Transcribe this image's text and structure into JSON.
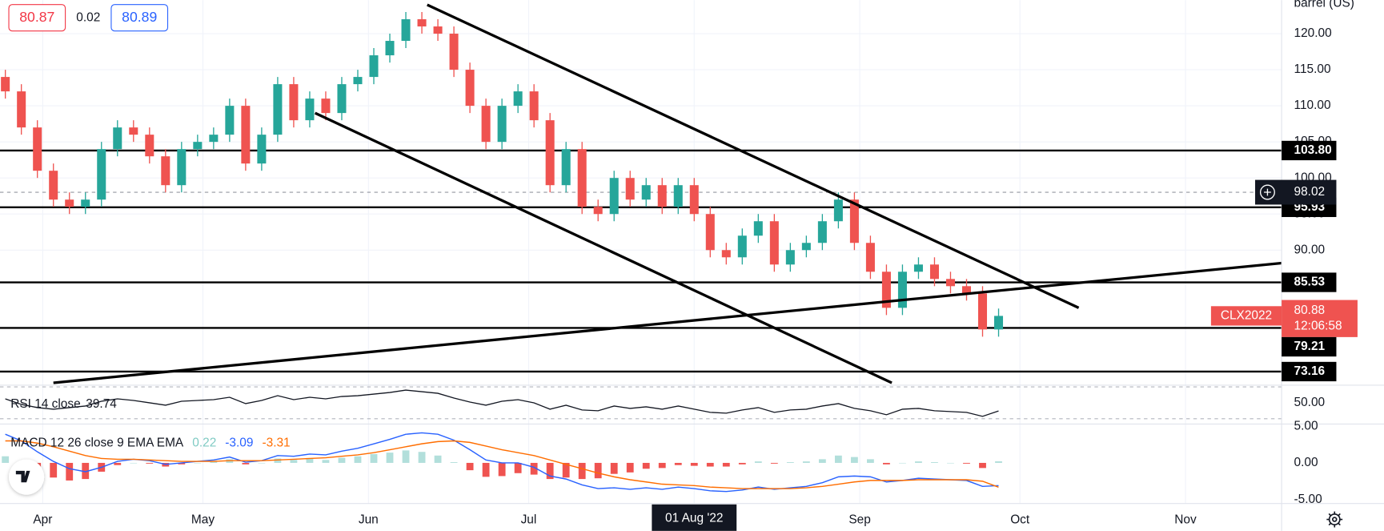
{
  "chart_data": {
    "type": "candlestick",
    "unit": "barrel (US)",
    "symbol": "CLX2022",
    "header": {
      "bid": 80.87,
      "spread": 0.02,
      "ask": 80.89
    },
    "x": [
      "2022-03-25",
      "2022-03-28",
      "2022-03-31",
      "2022-04-03",
      "2022-04-06",
      "2022-04-09",
      "2022-04-12",
      "2022-04-15",
      "2022-04-18",
      "2022-04-21",
      "2022-04-24",
      "2022-04-27",
      "2022-04-30",
      "2022-05-03",
      "2022-05-06",
      "2022-05-09",
      "2022-05-12",
      "2022-05-15",
      "2022-05-18",
      "2022-05-21",
      "2022-05-24",
      "2022-05-27",
      "2022-05-30",
      "2022-06-02",
      "2022-06-05",
      "2022-06-08",
      "2022-06-11",
      "2022-06-14",
      "2022-06-17",
      "2022-06-20",
      "2022-06-23",
      "2022-06-26",
      "2022-06-29",
      "2022-07-02",
      "2022-07-05",
      "2022-07-08",
      "2022-07-11",
      "2022-07-14",
      "2022-07-17",
      "2022-07-20",
      "2022-07-23",
      "2022-07-26",
      "2022-07-29",
      "2022-08-01",
      "2022-08-04",
      "2022-08-07",
      "2022-08-10",
      "2022-08-13",
      "2022-08-16",
      "2022-08-19",
      "2022-08-22",
      "2022-08-25",
      "2022-08-28",
      "2022-08-31",
      "2022-09-03",
      "2022-09-06",
      "2022-09-09",
      "2022-09-12",
      "2022-09-15",
      "2022-09-18",
      "2022-09-21",
      "2022-09-24",
      "2022-09-27"
    ],
    "open": [
      114,
      112,
      107,
      101,
      97,
      96,
      97,
      104,
      107,
      106,
      103,
      99,
      104,
      105,
      106,
      110,
      102,
      106,
      113,
      108,
      111,
      109,
      113,
      114,
      117,
      119,
      122,
      121,
      120,
      115,
      110,
      105,
      110,
      112,
      108,
      99,
      104,
      96,
      95,
      100,
      97,
      99,
      96,
      99,
      95,
      90,
      89,
      92,
      94,
      88,
      90,
      91,
      94,
      97,
      91,
      87,
      82,
      87,
      88,
      86,
      85,
      84,
      79
    ],
    "high": [
      115,
      113,
      108,
      102,
      98,
      98,
      105,
      108,
      108,
      107,
      104,
      105,
      106,
      107,
      111,
      111,
      107,
      114,
      114,
      112,
      112,
      114,
      115,
      118,
      120,
      123,
      123,
      122,
      121,
      116,
      111,
      111,
      113,
      113,
      109,
      105,
      105,
      97,
      101,
      101,
      100,
      100,
      100,
      100,
      96,
      91,
      93,
      95,
      95,
      91,
      92,
      95,
      98,
      98,
      92,
      88,
      88,
      89,
      89,
      87,
      86,
      85,
      81.9
    ],
    "low": [
      111,
      106,
      100,
      96,
      95,
      95,
      96,
      103,
      105,
      102,
      98,
      98,
      103,
      104,
      105,
      101,
      101,
      105,
      107,
      107,
      108,
      108,
      112,
      113,
      116,
      118,
      120,
      119,
      114,
      109,
      104,
      104,
      109,
      107,
      98,
      98,
      95,
      94,
      94,
      96,
      96,
      95,
      95,
      94,
      89,
      88,
      88,
      91,
      87,
      87,
      89,
      90,
      93,
      90,
      86,
      81,
      81,
      86,
      85,
      84,
      83,
      78,
      78
    ],
    "close": [
      112,
      107,
      101,
      97,
      96,
      97,
      104,
      107,
      106,
      103,
      99,
      104,
      105,
      106,
      110,
      102,
      106,
      113,
      108,
      111,
      109,
      113,
      114,
      117,
      119,
      122,
      121,
      120,
      115,
      110,
      105,
      110,
      112,
      108,
      99,
      104,
      96,
      95,
      100,
      97,
      99,
      96,
      99,
      95,
      90,
      89,
      92,
      94,
      88,
      90,
      91,
      94,
      97,
      91,
      87,
      82,
      87,
      88,
      86,
      85,
      84,
      79,
      80.88
    ],
    "up_color": "#26a69a",
    "down_color": "#ef5350",
    "xlim": [
      "2022-03-24",
      "2022-11-19"
    ],
    "xticks": [
      {
        "value": "2022-04-01",
        "label": "Apr"
      },
      {
        "value": "2022-05-01",
        "label": "May"
      },
      {
        "value": "2022-06-01",
        "label": "Jun"
      },
      {
        "value": "2022-07-01",
        "label": "Jul"
      },
      {
        "value": "2022-08-01",
        "label": "01 Aug '22"
      },
      {
        "value": "2022-09-01",
        "label": "Sep"
      },
      {
        "value": "2022-10-01",
        "label": "Oct"
      },
      {
        "value": "2022-11-01",
        "label": "Nov"
      }
    ],
    "crosshair": {
      "x": "2022-08-01"
    },
    "ylim": [
      71.4,
      124.65
    ],
    "yticks": [
      {
        "value": 90,
        "label": "90.00"
      },
      {
        "value": 95,
        "label": "95.00"
      },
      {
        "value": 100,
        "label": "100.00"
      },
      {
        "value": 105,
        "label": "105.00"
      },
      {
        "value": 110,
        "label": "110.00"
      },
      {
        "value": 115,
        "label": "115.00"
      },
      {
        "value": 120,
        "label": "120.00"
      }
    ],
    "grid": true,
    "levels": [
      {
        "value": 103.8,
        "label": "103.80"
      },
      {
        "value": 95.93,
        "label": "95.93"
      },
      {
        "value": 85.53,
        "label": "85.53"
      },
      {
        "value": 79.21,
        "label": "79.21"
      },
      {
        "value": 73.16,
        "label": "73.16"
      }
    ],
    "reference_price": {
      "value": 98.02
    },
    "last_price": {
      "value": 80.88,
      "countdown": "12:06:58",
      "color": "#ef5350"
    },
    "trend_lines": [
      {
        "x": [
          "2022-06-12",
          "2022-10-12"
        ],
        "y": [
          124.0,
          82.0
        ]
      },
      {
        "x": [
          "2022-05-22",
          "2022-09-07"
        ],
        "y": [
          109.0,
          71.6
        ]
      },
      {
        "x": [
          "2022-04-03",
          "2022-11-19"
        ],
        "y": [
          71.6,
          88.2
        ]
      }
    ],
    "rsi": {
      "name": "RSI 14 close",
      "value": 39.74,
      "values": [
        55,
        48,
        44,
        42,
        44,
        46,
        52,
        55,
        53,
        50,
        47,
        52,
        53,
        54,
        57,
        49,
        53,
        59,
        54,
        57,
        55,
        58,
        59,
        61,
        63,
        66,
        64,
        62,
        56,
        51,
        47,
        52,
        54,
        50,
        42,
        47,
        41,
        40,
        46,
        43,
        45,
        42,
        46,
        42,
        38,
        37,
        41,
        44,
        38,
        41,
        42,
        46,
        49,
        43,
        40,
        35,
        42,
        43,
        40,
        39,
        38,
        33,
        39.74
      ],
      "ylim": [
        23.3,
        72.2
      ],
      "yticks": [
        {
          "value": 50,
          "label": "50.00"
        }
      ],
      "bands": [
        70,
        30
      ],
      "color": "#131722"
    },
    "macd": {
      "name": "MACD 12 26 close 9 EMA EMA",
      "histogram_value": 0.22,
      "macd_value": -3.09,
      "signal_value": -3.31,
      "histogram": [
        0.9,
        0.0,
        -1.2,
        -2.0,
        -2.4,
        -2.2,
        -1.2,
        -0.3,
        0.0,
        -0.1,
        -0.5,
        -0.2,
        0.0,
        0.2,
        0.5,
        -0.2,
        0.0,
        0.6,
        0.4,
        0.6,
        0.4,
        0.7,
        0.9,
        1.2,
        1.4,
        1.7,
        1.5,
        1.0,
        0.1,
        -1.0,
        -1.9,
        -1.8,
        -1.4,
        -1.6,
        -2.2,
        -2.0,
        -2.2,
        -2.1,
        -1.5,
        -1.3,
        -0.8,
        -0.7,
        -0.3,
        -0.4,
        -0.5,
        -0.5,
        -0.2,
        0.2,
        -0.1,
        0.1,
        0.2,
        0.5,
        1.0,
        0.8,
        0.5,
        -0.2,
        0.0,
        0.2,
        0.1,
        0.0,
        -0.1,
        -0.7,
        0.22
      ],
      "macd": [
        3.9,
        3.0,
        1.5,
        0.2,
        -0.8,
        -1.2,
        -0.6,
        0.2,
        0.5,
        0.3,
        -0.2,
        0.0,
        0.2,
        0.4,
        0.8,
        0.1,
        0.3,
        1.0,
        0.9,
        1.2,
        1.1,
        1.6,
        2.0,
        2.6,
        3.2,
        3.9,
        4.1,
        3.9,
        3.1,
        1.8,
        0.4,
        0.0,
        0.0,
        -0.6,
        -1.8,
        -2.2,
        -3.0,
        -3.5,
        -3.4,
        -3.6,
        -3.4,
        -3.6,
        -3.3,
        -3.5,
        -3.8,
        -3.9,
        -3.7,
        -3.3,
        -3.6,
        -3.4,
        -3.2,
        -2.7,
        -1.9,
        -1.8,
        -1.9,
        -2.6,
        -2.4,
        -2.1,
        -2.2,
        -2.3,
        -2.4,
        -3.2,
        -3.09
      ],
      "signal": [
        3.0,
        3.0,
        2.7,
        2.2,
        1.6,
        1.0,
        0.6,
        0.5,
        0.5,
        0.4,
        0.3,
        0.2,
        0.2,
        0.2,
        0.3,
        0.3,
        0.3,
        0.4,
        0.5,
        0.6,
        0.7,
        0.9,
        1.1,
        1.4,
        1.8,
        2.2,
        2.6,
        2.9,
        3.0,
        2.8,
        2.3,
        1.8,
        1.4,
        1.0,
        0.4,
        -0.2,
        -0.8,
        -1.4,
        -1.9,
        -2.3,
        -2.6,
        -2.9,
        -3.0,
        -3.1,
        -3.3,
        -3.4,
        -3.5,
        -3.5,
        -3.5,
        -3.5,
        -3.4,
        -3.2,
        -2.9,
        -2.6,
        -2.4,
        -2.4,
        -2.4,
        -2.3,
        -2.3,
        -2.3,
        -2.3,
        -2.5,
        -3.31
      ],
      "histogram_up_color": "#b2dfdb",
      "histogram_down_color": "#ef5350",
      "macd_color": "#2962ff",
      "signal_color": "#ff6d00",
      "ylim": [
        -5.54,
        5.3
      ],
      "yticks": [
        {
          "value": 5,
          "label": "5.00"
        },
        {
          "value": 0,
          "label": "0.00"
        },
        {
          "value": -5,
          "label": "-5.00"
        }
      ]
    }
  }
}
